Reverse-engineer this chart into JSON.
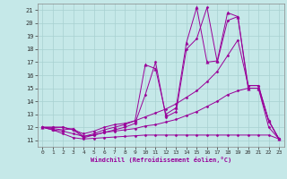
{
  "xlabel": "Windchill (Refroidissement éolien,°C)",
  "xlim": [
    -0.5,
    23.5
  ],
  "ylim": [
    10.5,
    21.5
  ],
  "xticks": [
    0,
    1,
    2,
    3,
    4,
    5,
    6,
    7,
    8,
    9,
    10,
    11,
    12,
    13,
    14,
    15,
    16,
    17,
    18,
    19,
    20,
    21,
    22,
    23
  ],
  "yticks": [
    11,
    12,
    13,
    14,
    15,
    16,
    17,
    18,
    19,
    20,
    21
  ],
  "background_color": "#c5e8e8",
  "grid_color": "#a8d0d0",
  "line_color": "#990099",
  "line_configs": [
    {
      "x": [
        0,
        1,
        2,
        3,
        4,
        5,
        6,
        7,
        8,
        9,
        10,
        11,
        12,
        13,
        14,
        15,
        16,
        17,
        18,
        19,
        20,
        21,
        22,
        23
      ],
      "y": [
        12,
        11.8,
        11.5,
        11.2,
        11.1,
        11.15,
        11.2,
        11.25,
        11.3,
        11.35,
        11.4,
        11.4,
        11.4,
        11.4,
        11.4,
        11.4,
        11.4,
        11.4,
        11.4,
        11.4,
        11.4,
        11.4,
        11.4,
        11.1
      ],
      "marker": "D",
      "ms": 1.5
    },
    {
      "x": [
        0,
        1,
        2,
        3,
        4,
        5,
        6,
        7,
        8,
        9,
        10,
        11,
        12,
        13,
        14,
        15,
        16,
        17,
        18,
        19,
        20,
        21,
        22,
        23
      ],
      "y": [
        12,
        11.8,
        11.7,
        11.5,
        11.3,
        11.4,
        11.6,
        11.7,
        11.8,
        11.9,
        12.1,
        12.2,
        12.4,
        12.6,
        12.9,
        13.2,
        13.6,
        14.0,
        14.5,
        14.8,
        15.0,
        15.0,
        12.0,
        11.1
      ],
      "marker": "D",
      "ms": 1.5
    },
    {
      "x": [
        0,
        1,
        2,
        3,
        4,
        5,
        6,
        7,
        8,
        9,
        10,
        11,
        12,
        13,
        14,
        15,
        16,
        17,
        18,
        19,
        20,
        21,
        22,
        23
      ],
      "y": [
        12,
        12,
        12,
        11.8,
        11.5,
        11.7,
        12.0,
        12.2,
        12.3,
        12.5,
        12.8,
        13.1,
        13.4,
        13.8,
        14.3,
        14.8,
        15.5,
        16.3,
        17.5,
        18.7,
        15.2,
        15.2,
        12.5,
        11.1
      ],
      "marker": "D",
      "ms": 1.5
    },
    {
      "x": [
        0,
        1,
        2,
        3,
        4,
        5,
        6,
        7,
        8,
        9,
        10,
        11,
        12,
        13,
        14,
        15,
        16,
        17,
        18,
        19,
        20,
        21,
        22,
        23
      ],
      "y": [
        12,
        11.9,
        11.8,
        11.9,
        11.3,
        11.5,
        11.8,
        12.0,
        12.2,
        12.5,
        16.8,
        16.5,
        13.0,
        13.5,
        18.5,
        21.2,
        17.0,
        17.1,
        20.8,
        20.5,
        15.0,
        15.0,
        12.5,
        11.1
      ],
      "marker": "^",
      "ms": 2.5
    },
    {
      "x": [
        0,
        1,
        2,
        3,
        4,
        5,
        6,
        7,
        8,
        9,
        10,
        11,
        12,
        13,
        14,
        15,
        16,
        17,
        18,
        19,
        20,
        21,
        22,
        23
      ],
      "y": [
        12,
        12,
        12,
        11.8,
        11.2,
        11.4,
        11.6,
        11.8,
        12.0,
        12.3,
        14.5,
        17.0,
        12.8,
        13.2,
        18.0,
        18.8,
        21.2,
        17.0,
        20.2,
        20.5,
        15.2,
        15.2,
        12.5,
        11.1
      ],
      "marker": "D",
      "ms": 1.5
    }
  ]
}
